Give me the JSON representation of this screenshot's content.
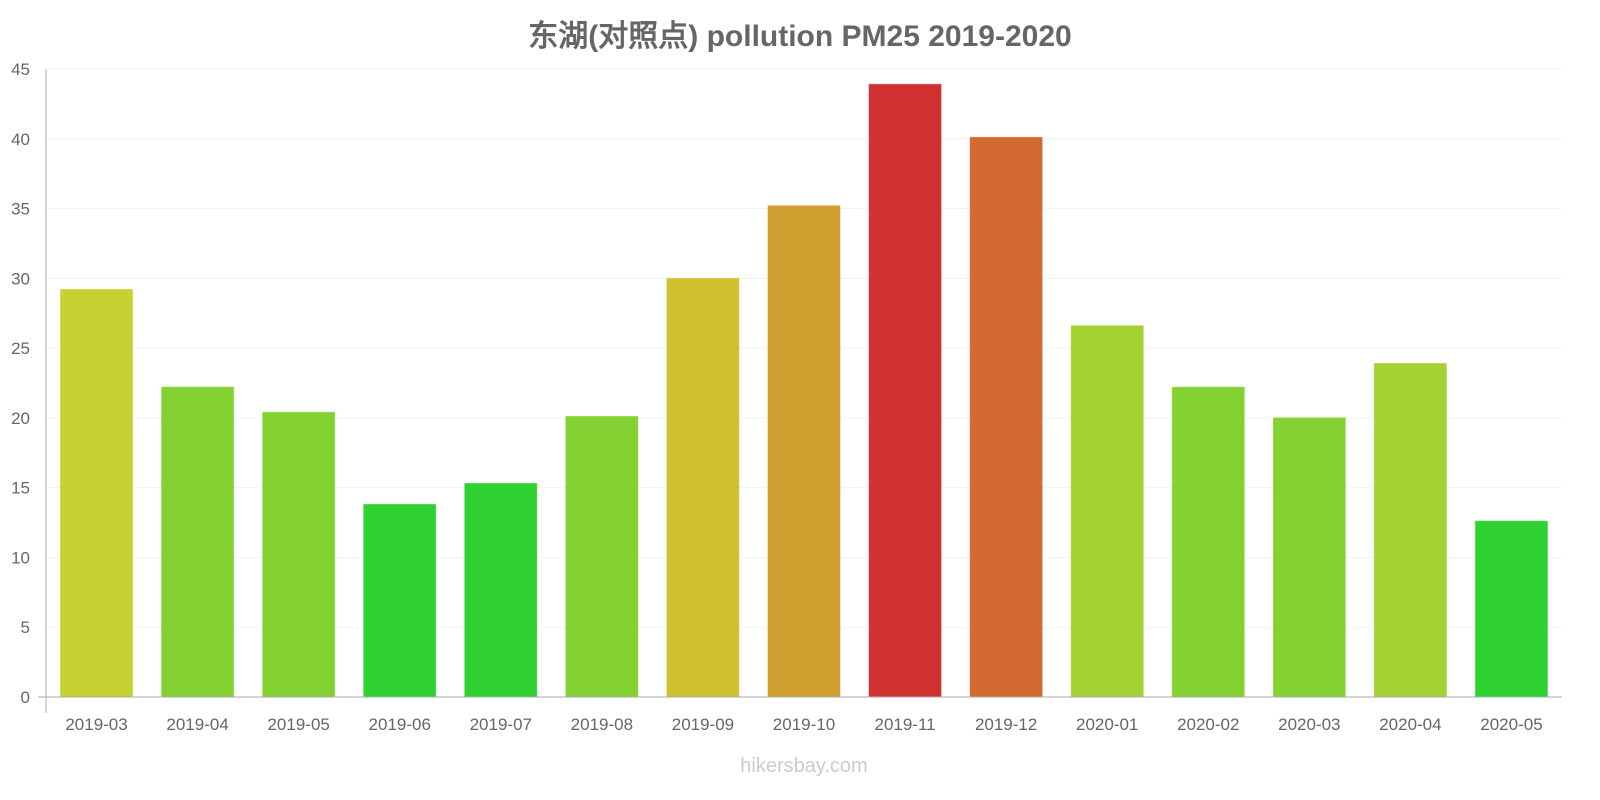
{
  "chart_data": {
    "type": "bar",
    "title": "东湖(对照点) pollution PM25 2019-2020",
    "xlabel": "",
    "ylabel": "",
    "ylim": [
      0,
      45
    ],
    "yticks": [
      0,
      5,
      10,
      15,
      20,
      25,
      30,
      35,
      40,
      45
    ],
    "grid": true,
    "categories": [
      "2019-03",
      "2019-04",
      "2019-05",
      "2019-06",
      "2019-07",
      "2019-08",
      "2019-09",
      "2019-10",
      "2019-11",
      "2019-12",
      "2020-01",
      "2020-02",
      "2020-03",
      "2020-04",
      "2020-05"
    ],
    "values": [
      29.2,
      22.2,
      20.4,
      13.8,
      15.3,
      20.1,
      30.0,
      35.2,
      43.9,
      40.1,
      26.6,
      22.2,
      20.0,
      23.9,
      12.6
    ],
    "colors": [
      "#cfdd35",
      "#8add35",
      "#8add35",
      "#33dd35",
      "#33dd35",
      "#8add35",
      "#dbcb33",
      "#dba933",
      "#db3535",
      "#dd7035",
      "#addd35",
      "#8add35",
      "#8add35",
      "#addd35",
      "#33dd35"
    ]
  },
  "watermark": "hikersbay.com"
}
